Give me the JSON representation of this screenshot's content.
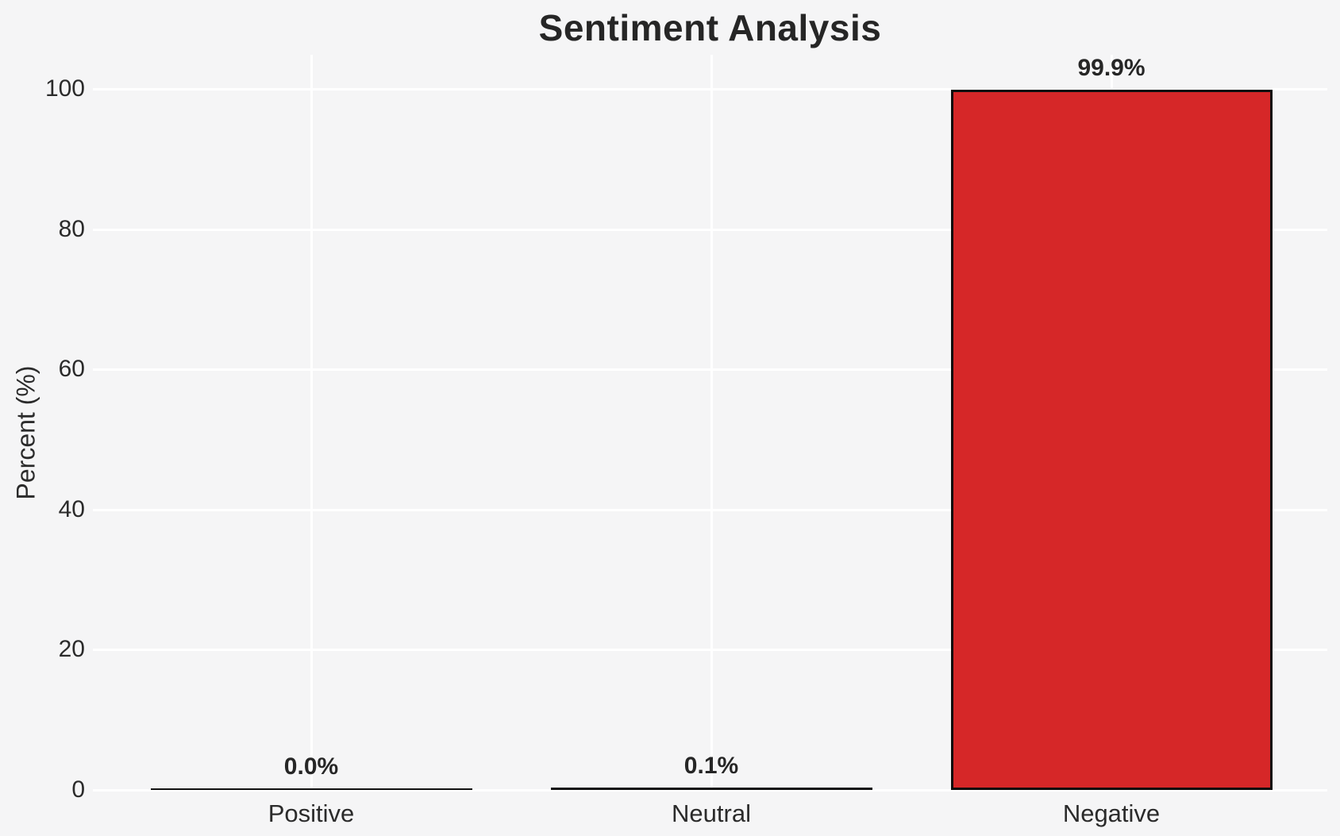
{
  "chart_data": {
    "type": "bar",
    "title": "Sentiment Analysis",
    "categories": [
      "Positive",
      "Neutral",
      "Negative"
    ],
    "values": [
      0.0,
      0.1,
      99.9
    ],
    "bar_labels": [
      "0.0%",
      "0.1%",
      "99.9%"
    ],
    "xlabel": "",
    "ylabel": "Percent (%)",
    "ylim": [
      0,
      105
    ],
    "yticks": [
      0,
      20,
      40,
      60,
      80,
      100
    ],
    "grid": true,
    "legend": "none",
    "colors": {
      "bar_fill": "#d62728",
      "bar_edge": "#0d0d0d",
      "background": "#f5f5f6",
      "gridline": "#ffffff",
      "text": "#262626"
    }
  }
}
